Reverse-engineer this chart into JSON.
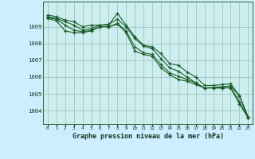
{
  "title": "Graphe pression niveau de la mer (hPa)",
  "fig_background": "#cceeff",
  "plot_background": "#cceeee",
  "grid_color": "#99bbbb",
  "line_color": "#1a5c28",
  "ylim": [
    1003.2,
    1010.5
  ],
  "xlim": [
    -0.5,
    23.5
  ],
  "yticks": [
    1004,
    1005,
    1006,
    1007,
    1008,
    1009
  ],
  "xtick_labels": [
    "0",
    "1",
    "2",
    "3",
    "4",
    "5",
    "6",
    "7",
    "8",
    "9",
    "10",
    "11",
    "12",
    "13",
    "14",
    "15",
    "16",
    "17",
    "18",
    "19",
    "20",
    "21",
    "22",
    "23"
  ],
  "series": [
    [
      1009.7,
      1009.6,
      1009.4,
      1009.3,
      1009.0,
      1009.1,
      1009.1,
      1009.1,
      1009.8,
      1009.1,
      1008.4,
      1007.9,
      1007.8,
      1007.4,
      1006.8,
      1006.7,
      1006.3,
      1006.0,
      1005.5,
      1005.5,
      1005.55,
      1005.6,
      1004.9,
      1003.65
    ],
    [
      1009.6,
      1009.5,
      1009.3,
      1009.1,
      1008.8,
      1008.9,
      1009.1,
      1009.15,
      1009.45,
      1009.0,
      1008.3,
      1007.85,
      1007.7,
      1007.1,
      1006.55,
      1006.35,
      1006.0,
      1005.65,
      1005.35,
      1005.38,
      1005.42,
      1005.48,
      1004.88,
      1003.58
    ],
    [
      1009.55,
      1009.45,
      1009.1,
      1008.8,
      1008.7,
      1008.8,
      1009.0,
      1009.0,
      1009.2,
      1008.75,
      1007.8,
      1007.45,
      1007.35,
      1006.75,
      1006.25,
      1006.05,
      1005.85,
      1005.65,
      1005.35,
      1005.35,
      1005.35,
      1005.38,
      1004.55,
      1003.58
    ],
    [
      1009.5,
      1009.35,
      1008.75,
      1008.65,
      1008.65,
      1008.75,
      1009.0,
      1009.0,
      1009.15,
      1008.65,
      1007.55,
      1007.35,
      1007.25,
      1006.55,
      1006.15,
      1005.85,
      1005.75,
      1005.55,
      1005.35,
      1005.35,
      1005.35,
      1005.35,
      1004.4,
      1003.58
    ]
  ]
}
